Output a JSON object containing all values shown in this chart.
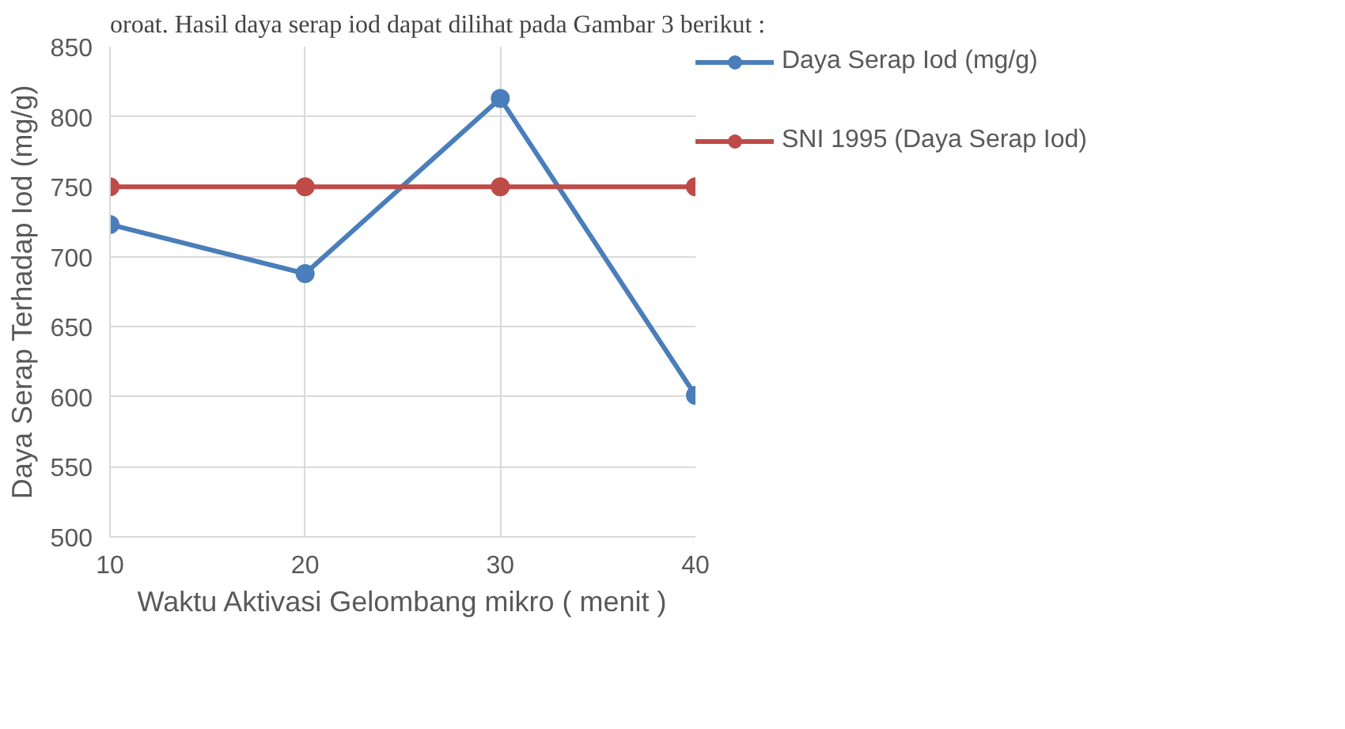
{
  "chart_data": {
    "type": "line",
    "xlabel": "Waktu Aktivasi Gelombang mikro ( menit )",
    "ylabel": "Daya Serap Terhadap Iod (mg/g)",
    "annotations": [
      "oroat. Hasil daya serap iod dapat dilihat pada Gambar 3 berikut :"
    ],
    "x": [
      10,
      20,
      30,
      40
    ],
    "series": [
      {
        "name": "Daya Serap Iod (mg/g)",
        "color": "#4a7ebb",
        "values": [
          723,
          688,
          813,
          601
        ]
      },
      {
        "name": "SNI 1995 (Daya Serap Iod)",
        "color": "#be4b48",
        "values": [
          750,
          750,
          750,
          750
        ]
      }
    ],
    "xlim": [
      10,
      40
    ],
    "xticks": [
      10,
      20,
      30,
      40
    ],
    "ylim": [
      500,
      850
    ],
    "yticks": [
      500,
      550,
      600,
      650,
      700,
      750,
      800,
      850
    ],
    "grid": true,
    "legend": "right",
    "marker": "circle",
    "line_style": "solid"
  }
}
